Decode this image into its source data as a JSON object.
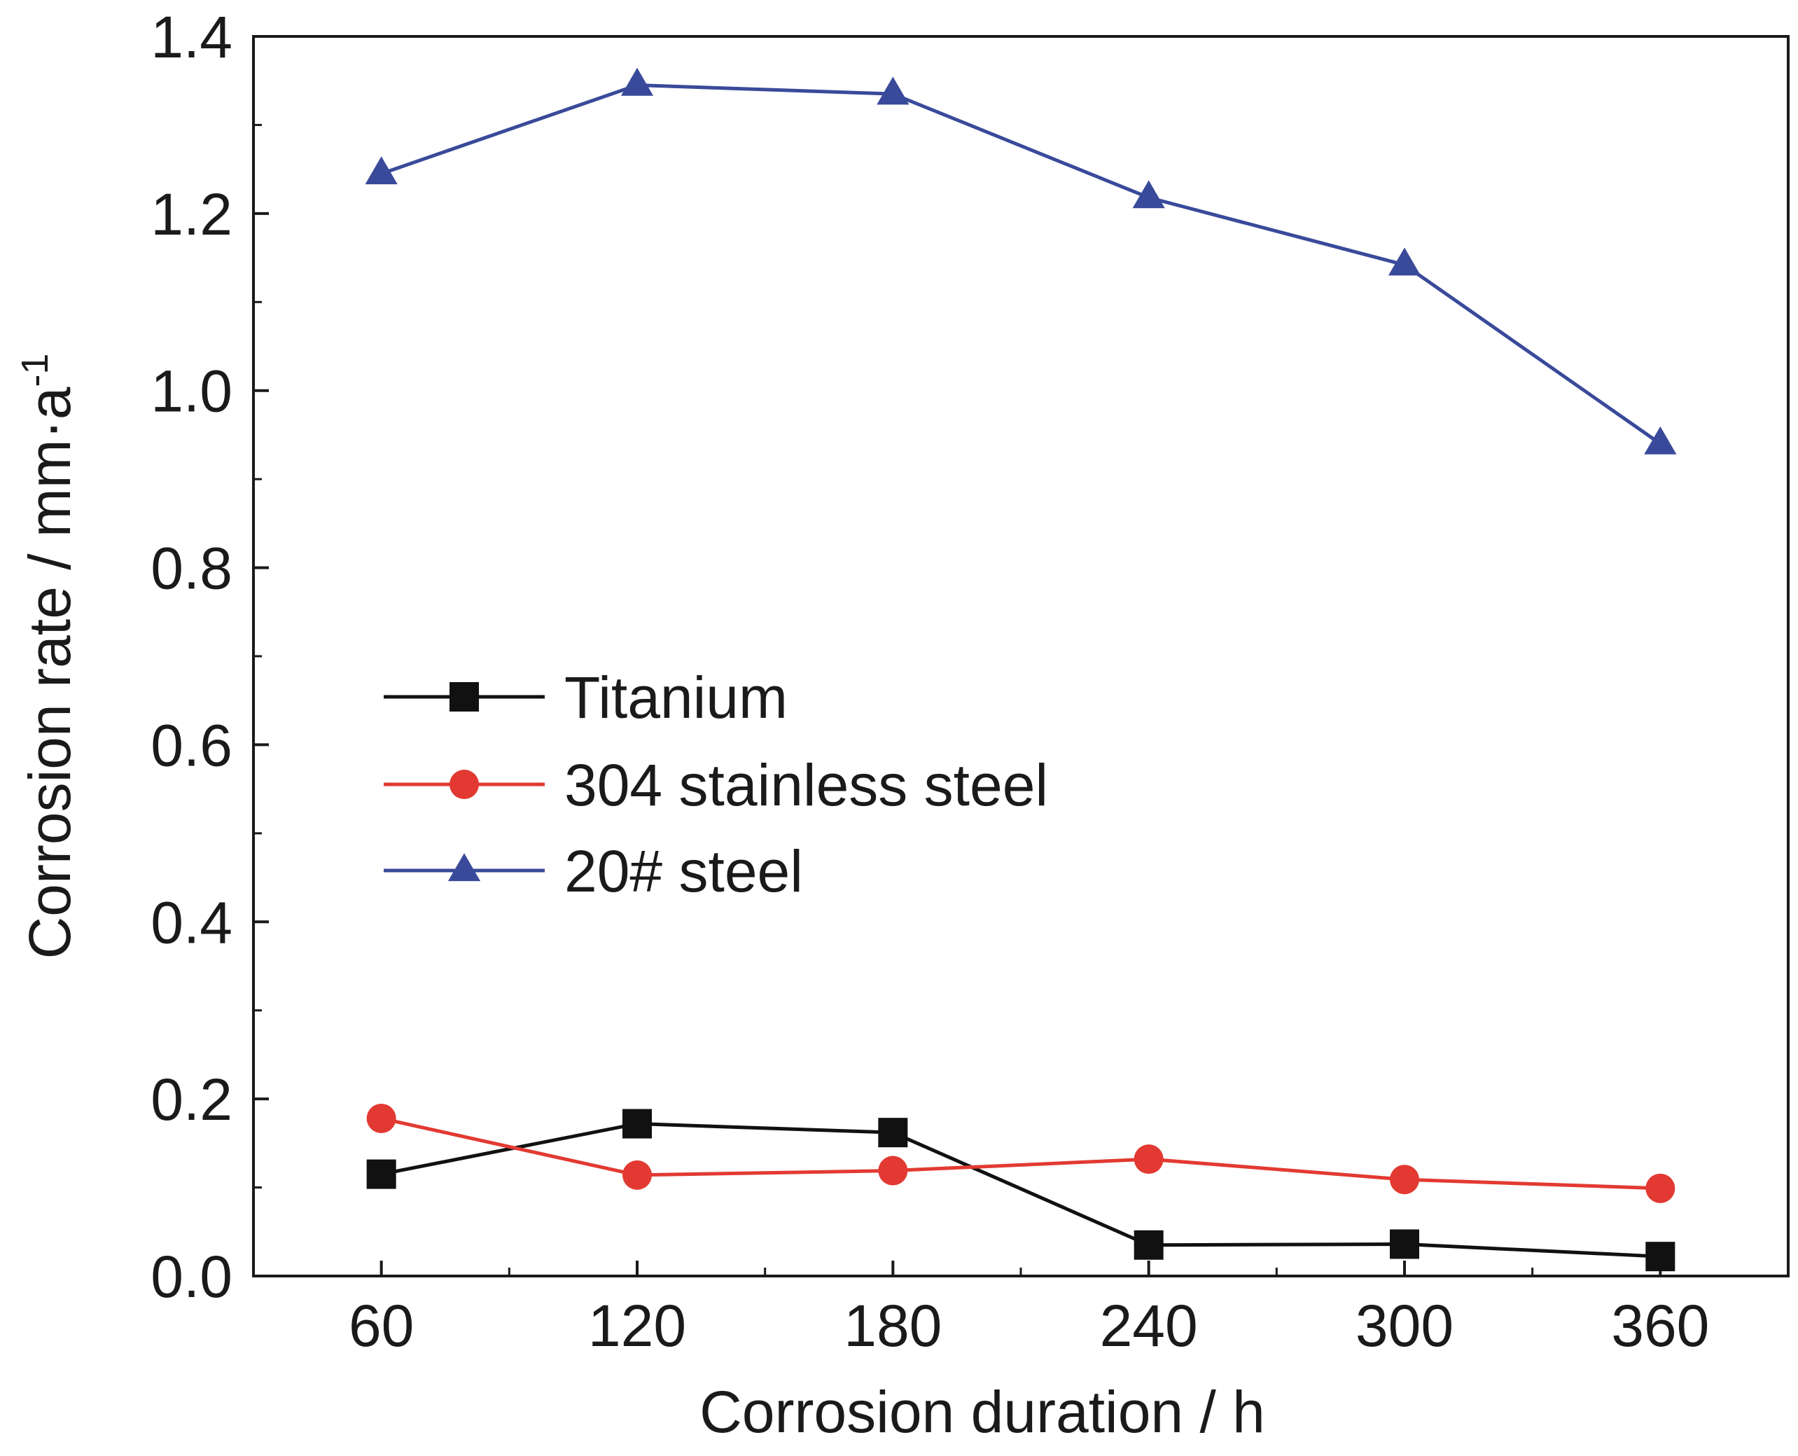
{
  "chart_data": {
    "type": "line",
    "title": "",
    "xlabel": "Corrosion duration / h",
    "ylabel": "Corrosion rate / mm·a",
    "ylabel_superscript": "-1",
    "x": [
      60,
      120,
      180,
      240,
      300,
      360
    ],
    "xlim": [
      30,
      390
    ],
    "ylim": [
      0.0,
      1.4
    ],
    "x_ticks": [
      "60",
      "120",
      "180",
      "240",
      "300",
      "360"
    ],
    "y_ticks": [
      "0.0",
      "0.2",
      "0.4",
      "0.6",
      "0.8",
      "1.0",
      "1.2",
      "1.4"
    ],
    "y_tick_values": [
      0.0,
      0.2,
      0.4,
      0.6,
      0.8,
      1.0,
      1.2,
      1.4
    ],
    "grid": false,
    "legend_position": "middle-left",
    "series": [
      {
        "name": "Titanium",
        "marker": "square",
        "color": "#111111",
        "values": [
          0.115,
          0.172,
          0.162,
          0.035,
          0.036,
          0.022
        ]
      },
      {
        "name": "304 stainless steel",
        "marker": "circle",
        "color": "#e23a32",
        "values": [
          0.178,
          0.114,
          0.119,
          0.132,
          0.109,
          0.099
        ]
      },
      {
        "name": "20# steel",
        "marker": "triangle",
        "color": "#3a4a9a",
        "values": [
          1.245,
          1.345,
          1.335,
          1.218,
          1.142,
          0.94
        ]
      }
    ]
  }
}
